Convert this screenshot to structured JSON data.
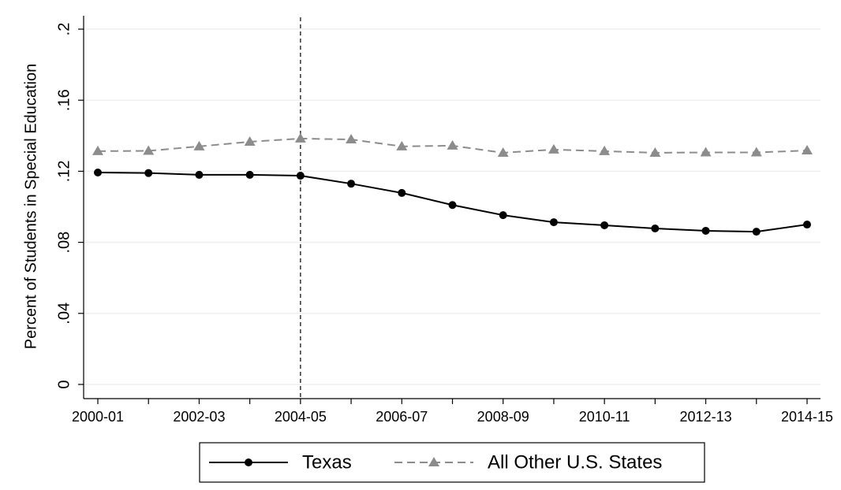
{
  "chart_data": {
    "type": "line",
    "y_label": "Percent of Students in Special Education",
    "categories": [
      "2000-01",
      null,
      "2002-03",
      null,
      "2004-05",
      null,
      "2006-07",
      null,
      "2008-09",
      null,
      "2010-11",
      null,
      "2012-13",
      null,
      "2014-15"
    ],
    "series": [
      {
        "name": "Texas",
        "color": "#000000",
        "dashed": false,
        "marker": "circle",
        "values": [
          0.1193,
          0.119,
          0.118,
          0.118,
          0.1175,
          0.113,
          0.1078,
          0.101,
          0.0953,
          0.0913,
          0.0896,
          0.0878,
          0.0865,
          0.086,
          0.09
        ]
      },
      {
        "name": "All Other U.S. States",
        "color": "#8c8c8c",
        "dashed": true,
        "marker": "triangle",
        "values": [
          0.1313,
          0.1315,
          0.134,
          0.1366,
          0.1384,
          0.1379,
          0.134,
          0.1344,
          0.1304,
          0.1322,
          0.1313,
          0.1304,
          0.1306,
          0.1306,
          0.1317
        ]
      }
    ],
    "ylim": [
      0,
      0.2
    ],
    "yticks": [
      0,
      {
        "value": 0.04,
        "label": ".04"
      },
      {
        "value": 0.08,
        "label": ".08"
      },
      {
        "value": 0.12,
        "label": ".12"
      },
      {
        "value": 0.16,
        "label": ".16"
      },
      {
        "value": 0.2,
        "label": ".2"
      }
    ],
    "grid": true,
    "vline_at": "2004-05",
    "legend": "bottom"
  }
}
